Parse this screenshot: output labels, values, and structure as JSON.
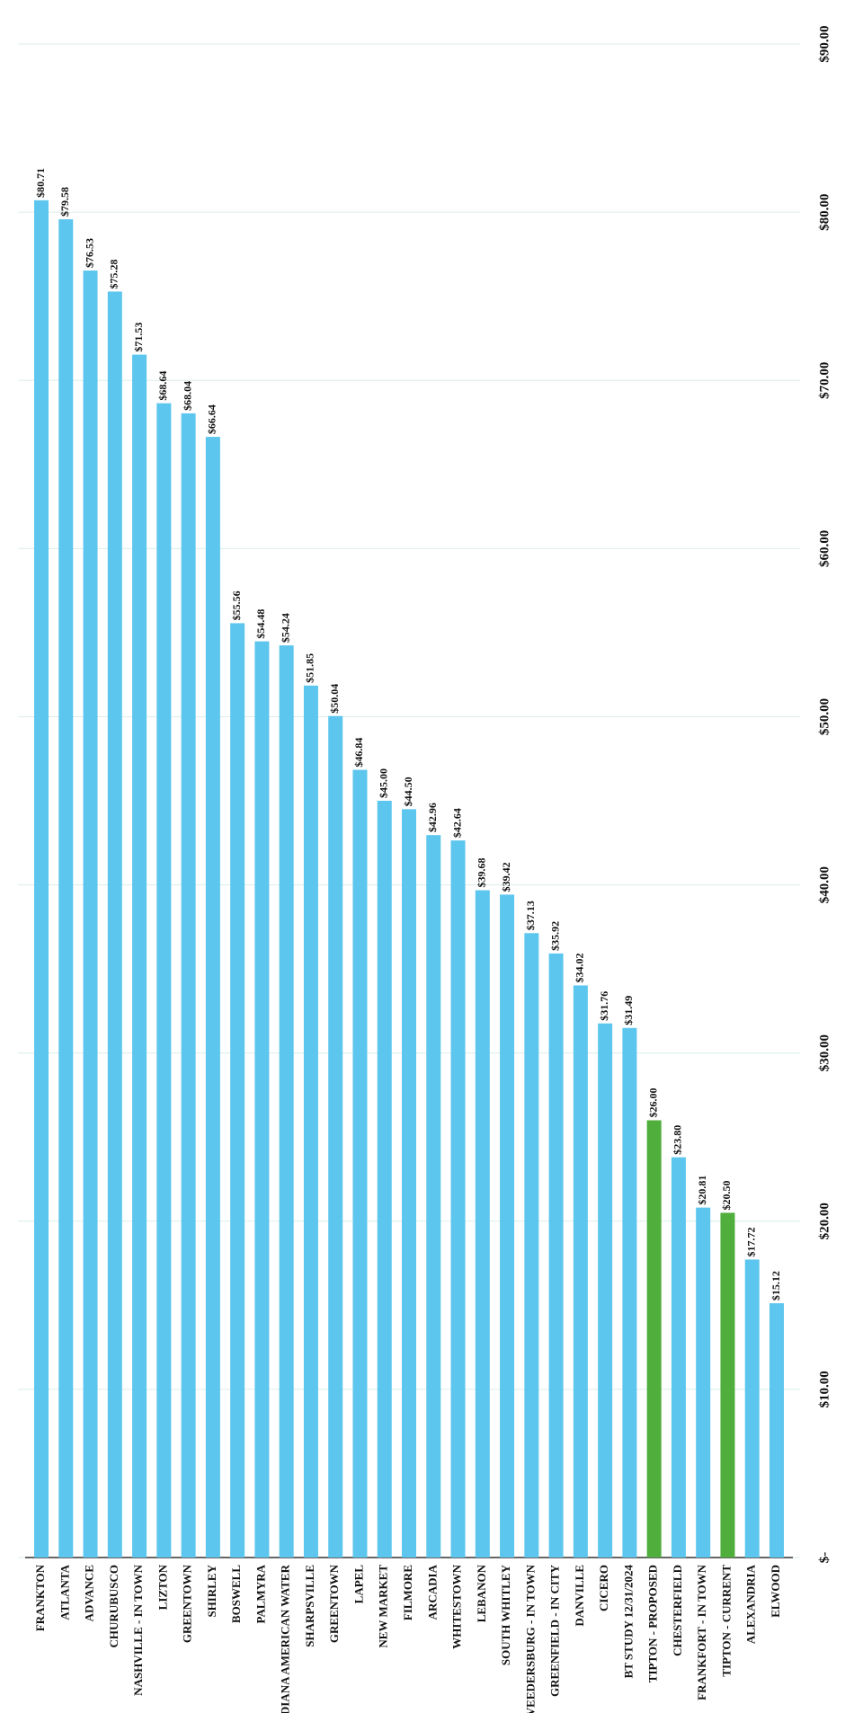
{
  "chart_data": {
    "type": "bar",
    "categories": [
      "FRANKTON",
      "ATLANTA",
      "ADVANCE",
      "CHURUBUSCO",
      "NASHVILLE - IN TOWN",
      "LIZTON",
      "GREENTOWN",
      "SHIRLEY",
      "BOSWELL",
      "PALMYRA",
      "INDIANA AMERICAN WATER",
      "SHARPSVILLE",
      "GREENTOWN",
      "LAPEL",
      "NEW MARKET",
      "FILMORE",
      "ARCADIA",
      "WHITESTOWN",
      "LEBANON",
      "SOUTH WHITLEY",
      "VEEDERSBURG - IN TOWN",
      "GREENFIELD - IN CITY",
      "DANVILLE",
      "CICERO",
      "BT STUDY 12/31/2024",
      "TIPTON - PROPOSED",
      "CHESTERFIELD",
      "FRANKFORT - IN TOWN",
      "TIPTON - CURRENT",
      "ALEXANDRIA",
      "ELWOOD"
    ],
    "values": [
      80.71,
      79.58,
      76.53,
      75.28,
      71.53,
      68.64,
      68.04,
      66.64,
      55.56,
      54.48,
      54.24,
      51.85,
      50.04,
      46.84,
      45.0,
      44.5,
      42.96,
      42.64,
      39.68,
      39.42,
      37.13,
      35.92,
      34.02,
      31.76,
      31.49,
      26.0,
      23.8,
      20.81,
      20.5,
      17.72,
      15.12
    ],
    "value_labels": [
      "$80.71",
      "$79.58",
      "$76.53",
      "$75.28",
      "$71.53",
      "$68.64",
      "$68.04",
      "$66.64",
      "$55.56",
      "$54.48",
      "$54.24",
      "$51.85",
      "$50.04",
      "$46.84",
      "$45.00",
      "$44.50",
      "$42.96",
      "$42.64",
      "$39.68",
      "$39.42",
      "$37.13",
      "$35.92",
      "$34.02",
      "$31.76",
      "$31.49",
      "$26.00",
      "$23.80",
      "$20.81",
      "$20.50",
      "$17.72",
      "$15.12"
    ],
    "colors": [
      "#5cc6ee",
      "#5cc6ee",
      "#5cc6ee",
      "#5cc6ee",
      "#5cc6ee",
      "#5cc6ee",
      "#5cc6ee",
      "#5cc6ee",
      "#5cc6ee",
      "#5cc6ee",
      "#5cc6ee",
      "#5cc6ee",
      "#5cc6ee",
      "#5cc6ee",
      "#5cc6ee",
      "#5cc6ee",
      "#5cc6ee",
      "#5cc6ee",
      "#5cc6ee",
      "#5cc6ee",
      "#5cc6ee",
      "#5cc6ee",
      "#5cc6ee",
      "#5cc6ee",
      "#5cc6ee",
      "#4fae3c",
      "#5cc6ee",
      "#5cc6ee",
      "#4fae3c",
      "#5cc6ee",
      "#5cc6ee"
    ],
    "ylim": [
      0,
      90
    ],
    "yticks": [
      {
        "value": 0,
        "label": "$-"
      },
      {
        "value": 10,
        "label": "$10.00"
      },
      {
        "value": 20,
        "label": "$20.00"
      },
      {
        "value": 30,
        "label": "$30.00"
      },
      {
        "value": 40,
        "label": "$40.00"
      },
      {
        "value": 50,
        "label": "$50.00"
      },
      {
        "value": 60,
        "label": "$60.00"
      },
      {
        "value": 70,
        "label": "$70.00"
      },
      {
        "value": 80,
        "label": "$80.00"
      },
      {
        "value": 90,
        "label": "$90.00"
      }
    ],
    "grid": true
  }
}
